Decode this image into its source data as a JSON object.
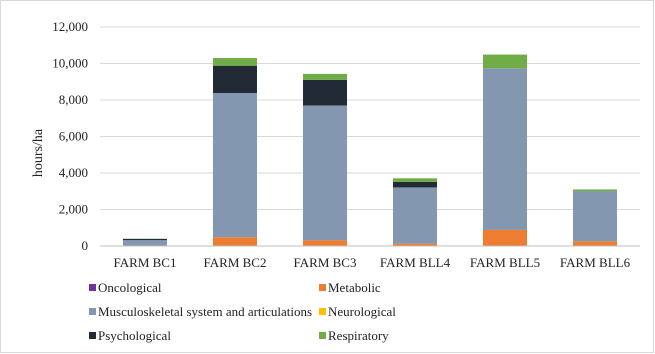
{
  "chart_data": {
    "type": "bar",
    "stacked": true,
    "title": "",
    "xlabel": "",
    "ylabel": "hours/ha",
    "ylim": [
      0,
      12000
    ],
    "yticks": [
      0,
      2000,
      4000,
      6000,
      8000,
      10000,
      12000
    ],
    "ytick_labels": [
      "0",
      "2,000",
      "4,000",
      "6,000",
      "8,000",
      "10,000",
      "12,000"
    ],
    "grid": true,
    "legend_position": "bottom",
    "categories": [
      "FARM BC1",
      "FARM BC2",
      "FARM BC3",
      "FARM BLL4",
      "FARM BLL5",
      "FARM BLL6"
    ],
    "series": [
      {
        "name": "Oncological",
        "color": "#7030a0",
        "values": [
          0,
          0,
          0,
          0,
          0,
          0
        ]
      },
      {
        "name": "Metabolic",
        "color": "#ed7d31",
        "values": [
          20,
          480,
          320,
          130,
          880,
          260
        ]
      },
      {
        "name": "Musculoskeletal system and articulations",
        "color": "#8497b0",
        "values": [
          300,
          7900,
          7380,
          3080,
          8860,
          2750
        ]
      },
      {
        "name": "Neurological",
        "color": "#ffc000",
        "values": [
          0,
          0,
          0,
          0,
          0,
          0
        ]
      },
      {
        "name": "Psychological",
        "color": "#222a35",
        "values": [
          70,
          1500,
          1400,
          300,
          0,
          0
        ]
      },
      {
        "name": "Respiratory",
        "color": "#70ad47",
        "values": [
          10,
          420,
          330,
          200,
          750,
          90
        ]
      }
    ]
  }
}
